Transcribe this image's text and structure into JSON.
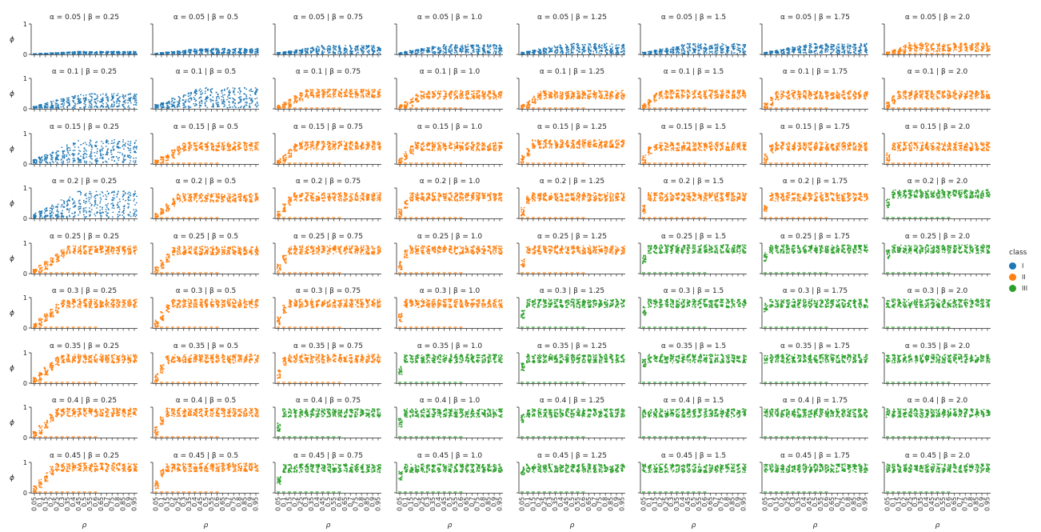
{
  "chart_data": {
    "type": "scatter",
    "layout": "facet-grid",
    "xlabel": "ρ",
    "ylabel": "ϕ",
    "x_ticks": [
      "0.05",
      "0.1",
      "0.15",
      "0.2",
      "0.25",
      "0.3",
      "0.35",
      "0.4",
      "0.45",
      "0.5",
      "0.55",
      "0.6",
      "0.65",
      "0.7",
      "0.75",
      "0.8",
      "0.85",
      "0.9",
      "0.95"
    ],
    "ylim": [
      0,
      1
    ],
    "y_ticks": [
      "0",
      "1"
    ],
    "row_alpha": [
      "0.05",
      "0.1",
      "0.15",
      "0.2",
      "0.25",
      "0.3",
      "0.35",
      "0.4",
      "0.45"
    ],
    "col_beta": [
      "0.25",
      "0.5",
      "0.75",
      "1.0",
      "1.25",
      "1.5",
      "1.75",
      "2.0"
    ],
    "legend": {
      "title": "class",
      "placement": "right",
      "entries": [
        {
          "name": "I",
          "color": "#1f77b4"
        },
        {
          "name": "II",
          "color": "#ff7f0e"
        },
        {
          "name": "III",
          "color": "#2ca02c"
        }
      ]
    },
    "panels": [
      [
        "I",
        "I",
        "I",
        "I",
        "I",
        "I",
        "I",
        "II"
      ],
      [
        "I",
        "I",
        "II",
        "II",
        "II",
        "II",
        "II",
        "II"
      ],
      [
        "I",
        "II",
        "II",
        "II",
        "II",
        "II",
        "II",
        "II"
      ],
      [
        "I",
        "II",
        "II",
        "II",
        "II",
        "II",
        "II",
        "III"
      ],
      [
        "II",
        "II",
        "II",
        "II",
        "II",
        "III",
        "III",
        "III"
      ],
      [
        "II",
        "II",
        "II",
        "II",
        "III",
        "III",
        "III",
        "III"
      ],
      [
        "II",
        "II",
        "II",
        "III",
        "III",
        "III",
        "III",
        "III"
      ],
      [
        "II",
        "II",
        "III",
        "III",
        "III",
        "III",
        "III",
        "III"
      ],
      [
        "II",
        "II",
        "III",
        "III",
        "III",
        "III",
        "III",
        "III"
      ]
    ],
    "class_I_upper_phi": [
      [
        0.1,
        0.2,
        0.3,
        0.33,
        0.36,
        0.36,
        0.36
      ],
      [
        0.5,
        0.7
      ],
      [
        0.8
      ],
      [
        0.9
      ]
    ],
    "class_II_upper_phi": [
      [
        null,
        null,
        null,
        null,
        null,
        null,
        null,
        0.38
      ],
      [
        null,
        null,
        0.65,
        0.6,
        0.6,
        0.62,
        0.6,
        0.6
      ],
      [
        null,
        0.72,
        0.75,
        0.72,
        0.8,
        0.72,
        0.72,
        0.72
      ],
      [
        null,
        0.82,
        0.85,
        0.85,
        0.85,
        0.85,
        0.85
      ],
      [
        0.92,
        0.9,
        0.92,
        0.92,
        0.92
      ],
      [
        0.95,
        0.95,
        0.95,
        0.95
      ],
      [
        0.95,
        0.95,
        0.95
      ],
      [
        0.97,
        0.97
      ],
      [
        0.98,
        0.98
      ]
    ],
    "class_III_upper_phi": 0.95
  }
}
